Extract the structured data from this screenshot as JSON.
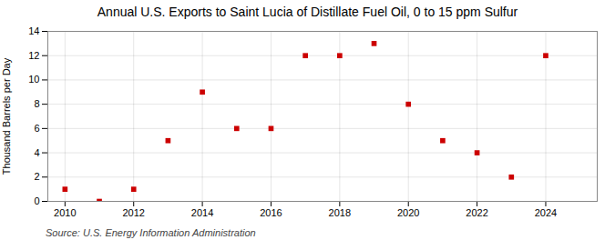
{
  "chart_data": {
    "type": "scatter",
    "title": "Annual U.S. Exports to Saint Lucia of Distillate Fuel Oil, 0 to 15 ppm Sulfur",
    "ylabel": "Thousand Barrels per Day",
    "source": "Source: U.S. Energy Information Administration",
    "x": [
      2010,
      2011,
      2012,
      2013,
      2014,
      2015,
      2016,
      2017,
      2018,
      2019,
      2020,
      2021,
      2022,
      2023,
      2024
    ],
    "values": [
      1,
      0,
      1,
      5,
      9,
      6,
      6,
      12,
      12,
      13,
      8,
      5,
      4,
      2,
      12
    ],
    "color": "#cc0000",
    "marker": "square",
    "xlim": [
      2009.5,
      2025.5
    ],
    "xticks": [
      2010,
      2012,
      2014,
      2016,
      2018,
      2020,
      2022,
      2024
    ],
    "ylim": [
      0,
      14
    ],
    "yticks": [
      0,
      2,
      4,
      6,
      8,
      10,
      12,
      14
    ],
    "grid": true
  }
}
